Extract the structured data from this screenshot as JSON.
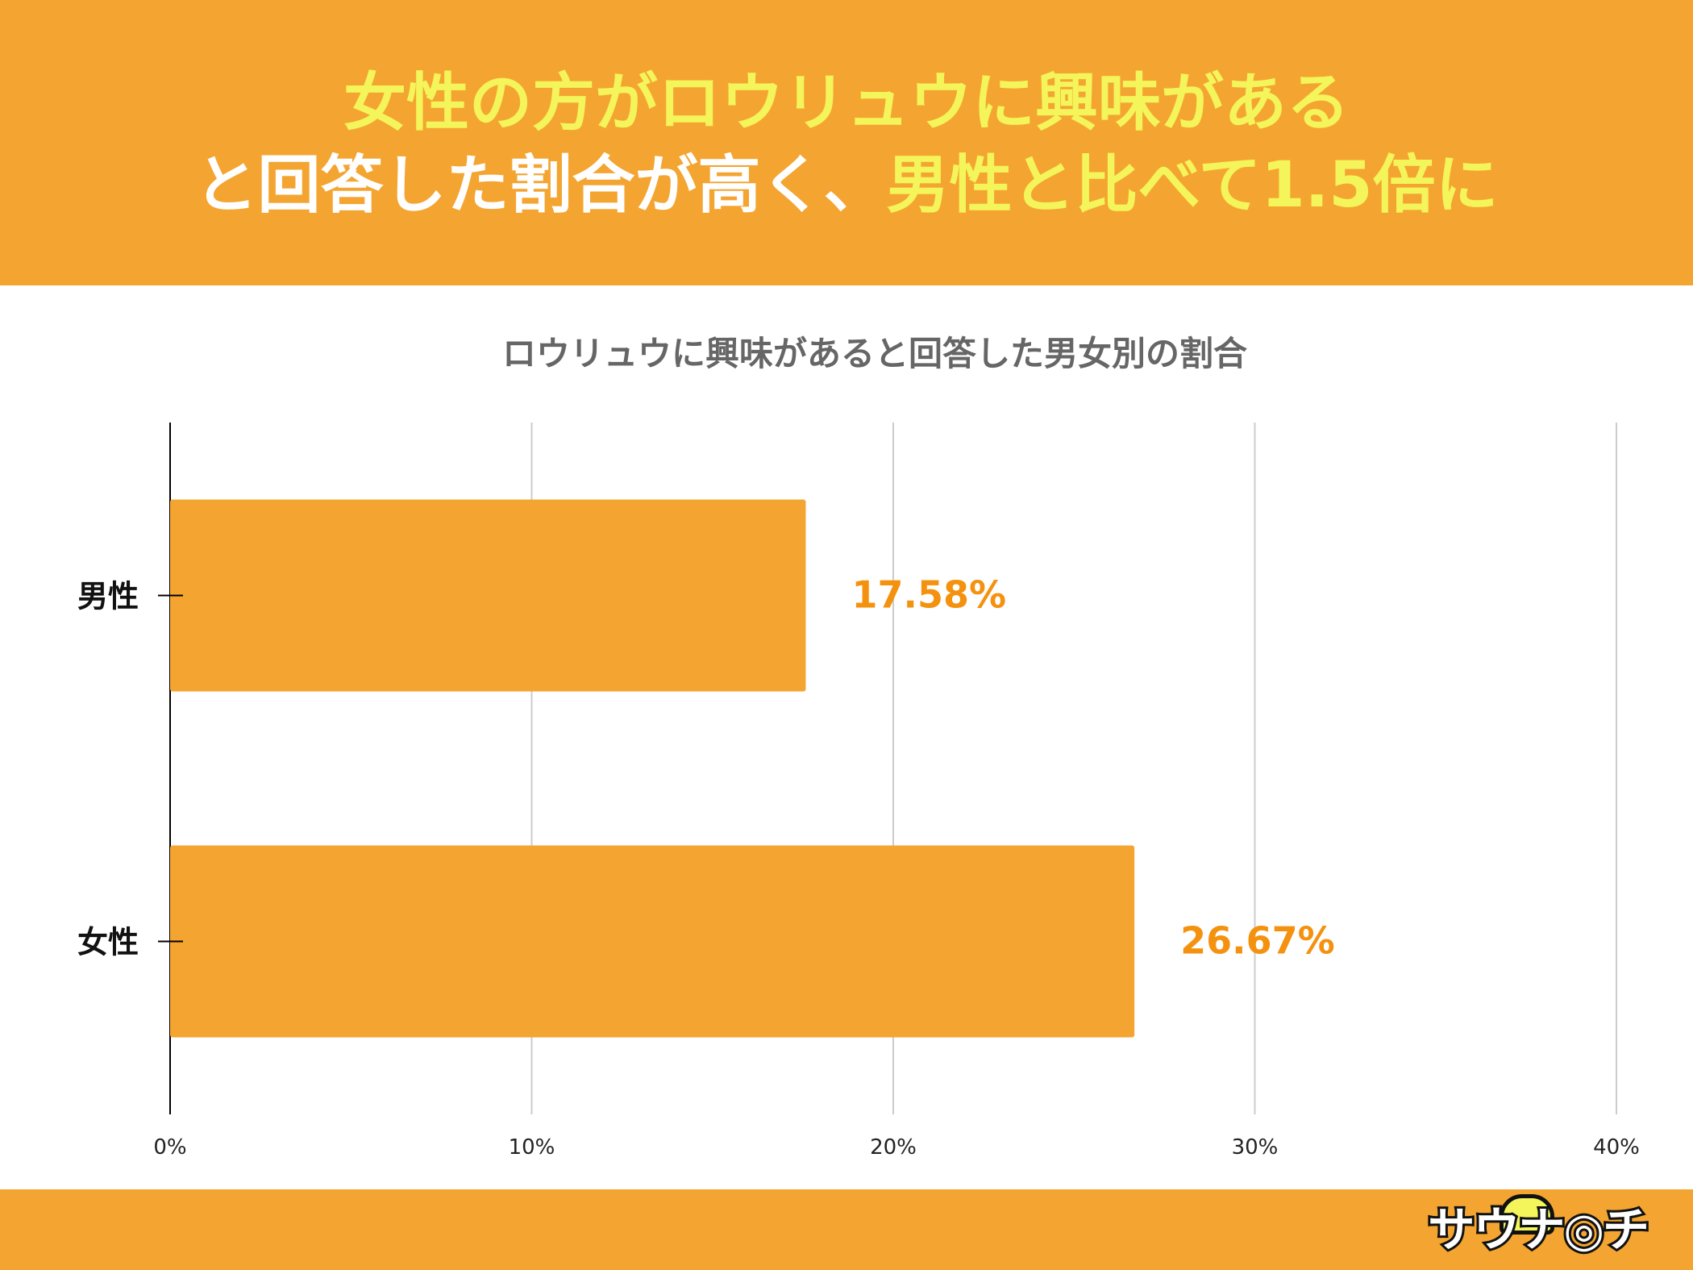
{
  "colors": {
    "accent": "#f4a531",
    "headline_yellow": "#f4f55a",
    "value_label": "#f4920f",
    "grid": "#cccccc"
  },
  "headline": {
    "line1": "女性の方がロウリュウに興味がある",
    "line2_a": "と回答した割合が高く、",
    "line2_b": "男性と比べて1.5倍に"
  },
  "footer": {
    "logo_text": "サウナ◎チ"
  },
  "chart_data": {
    "type": "bar",
    "orientation": "horizontal",
    "title": "ロウリュウに興味があると回答した男女別の割合",
    "categories": [
      "男性",
      "女性"
    ],
    "values": [
      17.58,
      26.67
    ],
    "value_labels": [
      "17.58%",
      "26.67%"
    ],
    "xlim": [
      0,
      40
    ],
    "ticks": [
      0,
      10,
      20,
      30,
      40
    ],
    "tick_labels": [
      "0%",
      "10%",
      "20%",
      "30%",
      "40%"
    ],
    "grid": true,
    "legend": "none"
  }
}
